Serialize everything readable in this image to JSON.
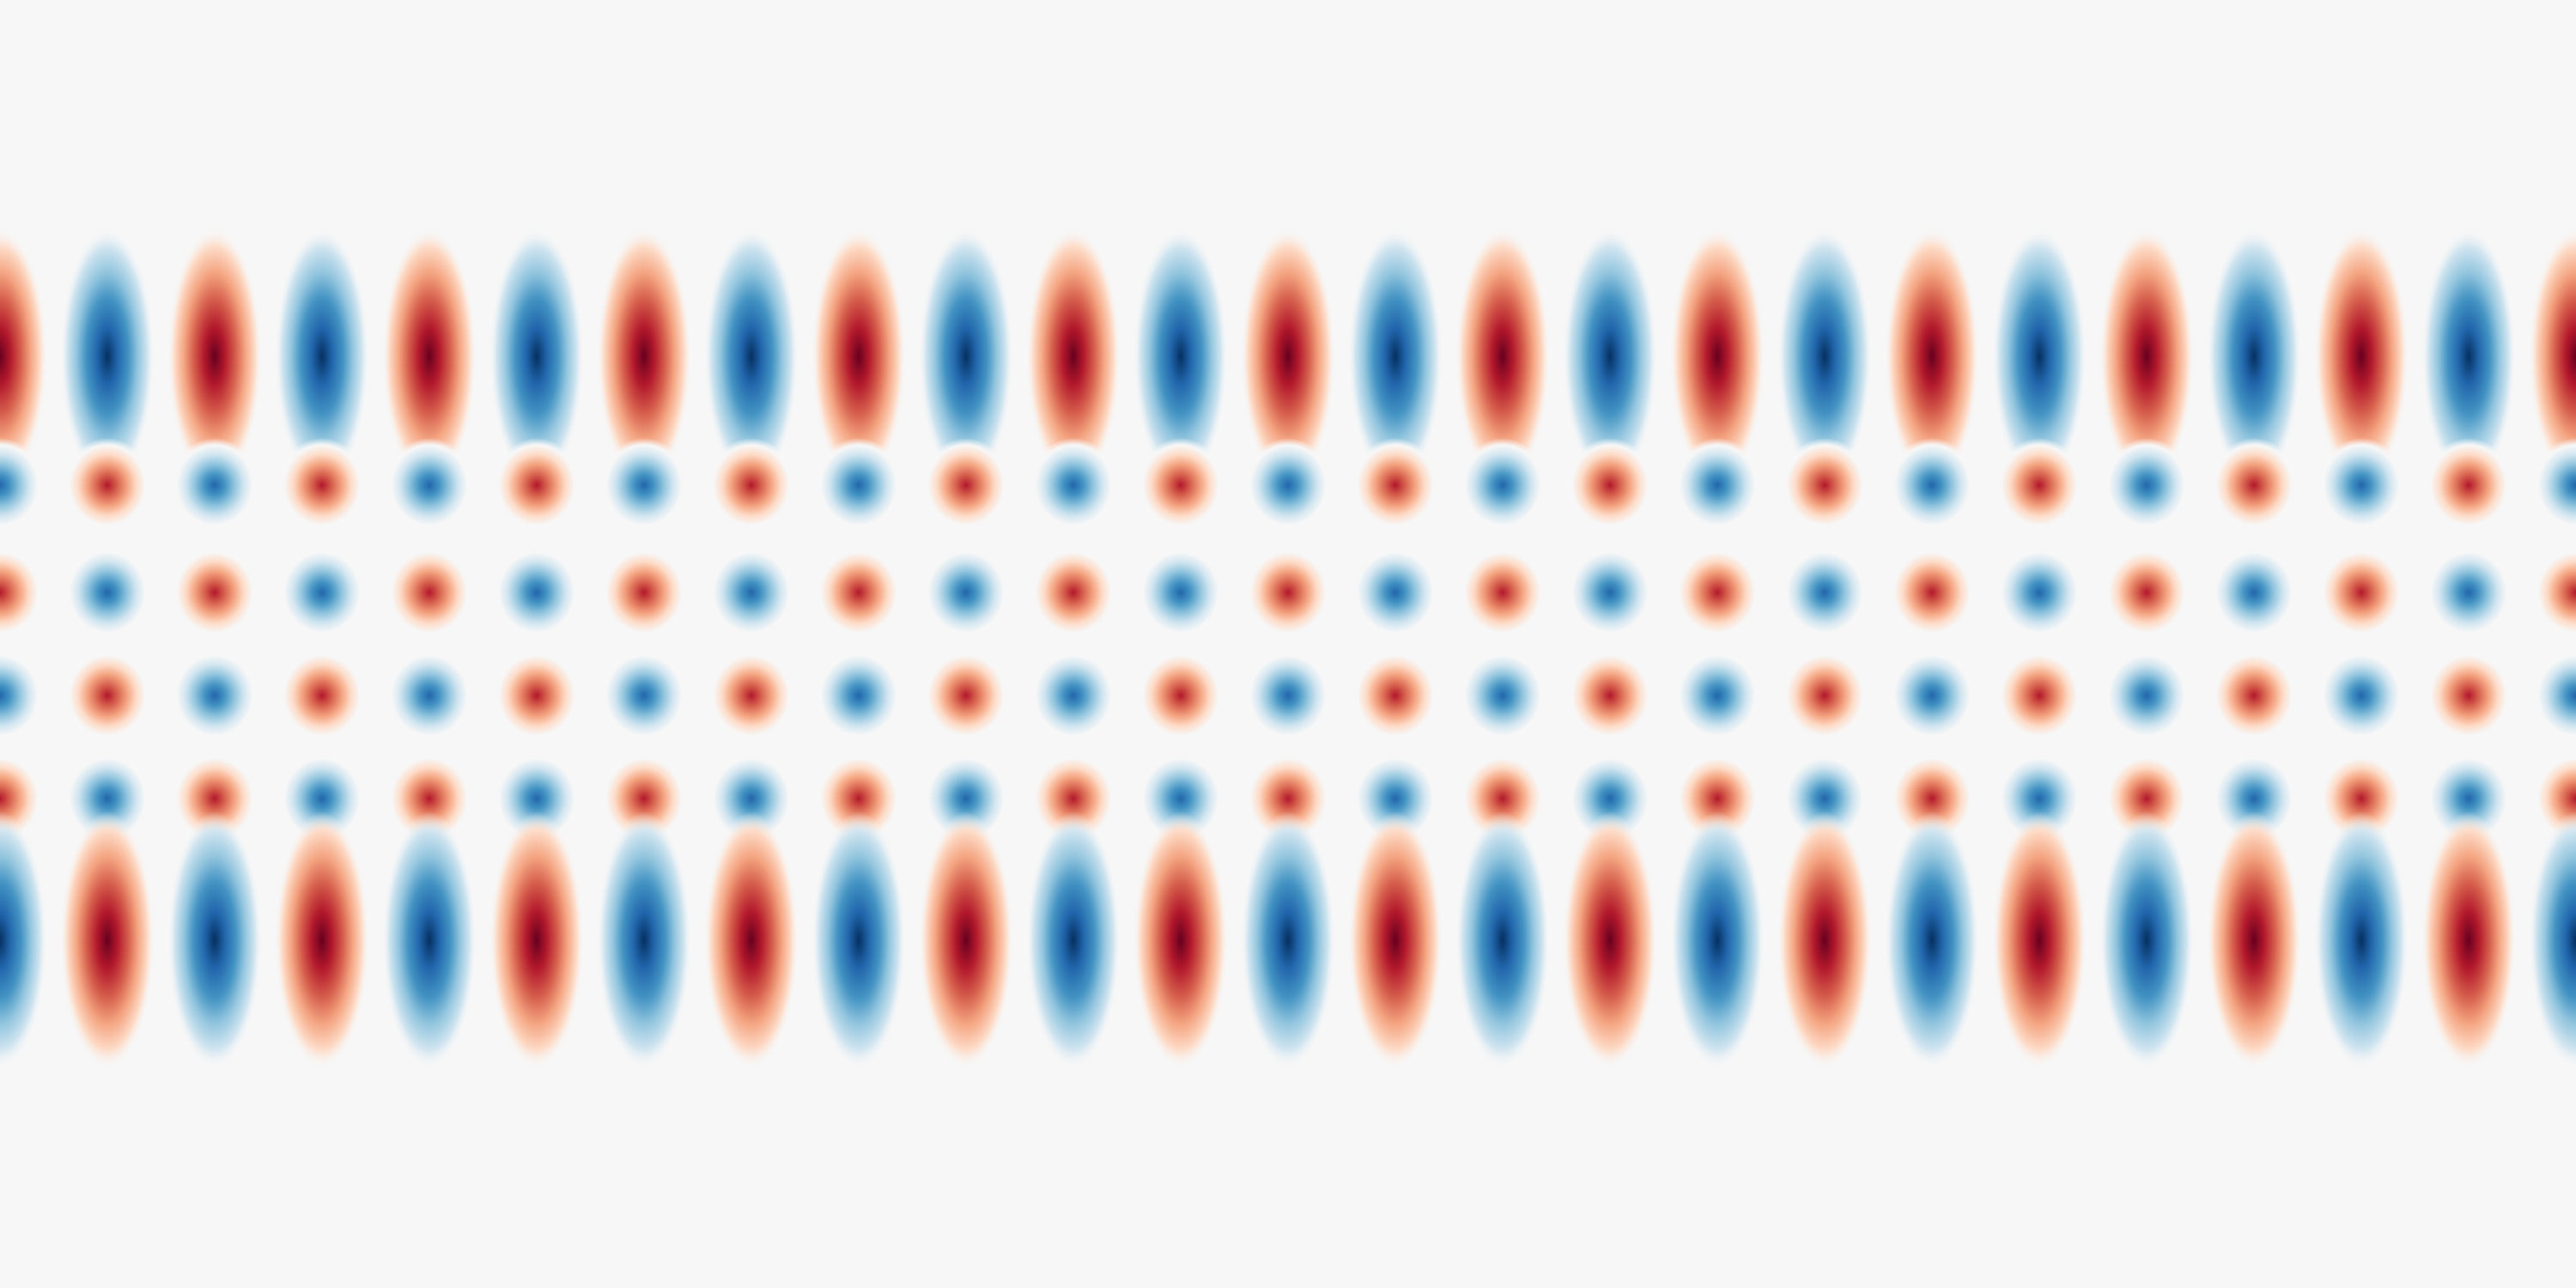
{
  "image": {
    "kind": "heatmap-pattern",
    "colormap": "RdBu_r",
    "background_color": "#f7f7f7",
    "positive_color": "#67001f",
    "negative_color": "#053061",
    "columns": 24,
    "rows": 6,
    "axes": "hidden",
    "text": []
  },
  "chart_data": {
    "type": "heatmap",
    "title": "",
    "xlabel": "",
    "ylabel": "",
    "pattern": "checkerboard",
    "row_amplitudes": [
      1.0,
      0.8,
      0.8,
      0.8,
      0.8,
      1.0
    ],
    "grid": false,
    "legend": "none"
  }
}
